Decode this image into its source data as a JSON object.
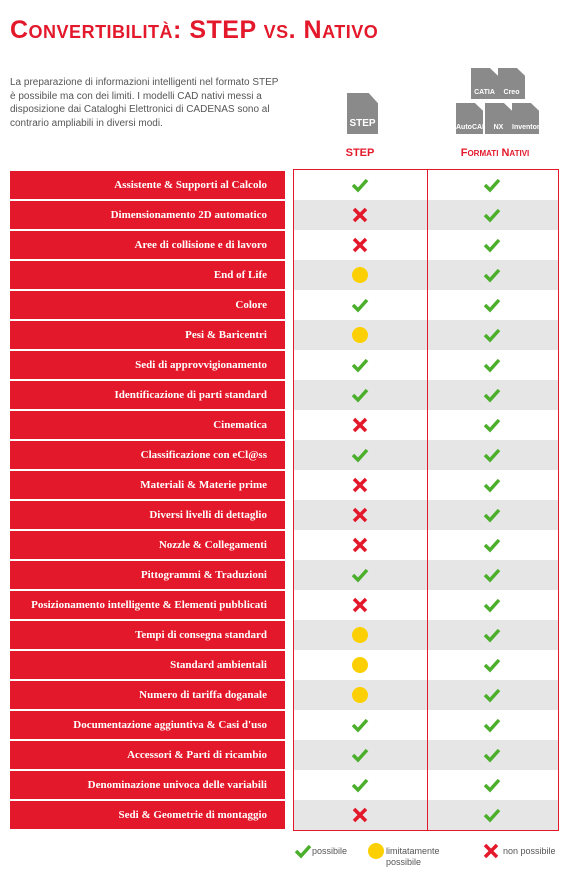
{
  "header": {
    "title": "Convertibilità: STEP vs. Nativo",
    "intro": [
      "La preparazione di informazioni intelligenti nel formato STEP",
      "è possibile ma con dei limiti. I modelli CAD nativi messi a",
      "disposizione dai Cataloghi Elettronici di CADENAS sono al",
      "contrario ampliabili in diversi modi."
    ]
  },
  "columns": {
    "step": {
      "icon": "STEP",
      "label": "STEP"
    },
    "native": {
      "icons": [
        "CATIA",
        "Creo",
        "AutoCAD",
        "NX",
        "Inventor"
      ],
      "label": "Formati Nativi"
    }
  },
  "table": {
    "rows": [
      {
        "label": "Assistente & Supporti al Calcolo",
        "step": "possibile",
        "native": "possibile"
      },
      {
        "label": "Dimensionamento 2D automatico",
        "step": "non possibile",
        "native": "possibile"
      },
      {
        "label": "Aree di collisione e di lavoro",
        "step": "non possibile",
        "native": "possibile"
      },
      {
        "label": "End of Life",
        "step": "limitatamente possibile",
        "native": "possibile"
      },
      {
        "label": "Colore",
        "step": "possibile",
        "native": "possibile"
      },
      {
        "label": "Pesi & Baricentri",
        "step": "limitatamente possibile",
        "native": "possibile"
      },
      {
        "label": "Sedi di approvvigionamento",
        "step": "possibile",
        "native": "possibile"
      },
      {
        "label": "Identificazione di parti standard",
        "step": "possibile",
        "native": "possibile"
      },
      {
        "label": "Cinematica",
        "step": "non possibile",
        "native": "possibile"
      },
      {
        "label": "Classificazione con eCl@ss",
        "step": "possibile",
        "native": "possibile"
      },
      {
        "label": "Materiali & Materie prime",
        "step": "non possibile",
        "native": "possibile"
      },
      {
        "label": "Diversi livelli di dettaglio",
        "step": "non possibile",
        "native": "possibile"
      },
      {
        "label": "Nozzle & Collegamenti",
        "step": "non possibile",
        "native": "possibile"
      },
      {
        "label": "Pittogrammi & Traduzioni",
        "step": "possibile",
        "native": "possibile"
      },
      {
        "label": "Posizionamento intelligente & Elementi pubblicati",
        "step": "non possibile",
        "native": "possibile"
      },
      {
        "label": "Tempi di consegna standard",
        "step": "limitatamente possibile",
        "native": "possibile"
      },
      {
        "label": "Standard ambientali",
        "step": "limitatamente possibile",
        "native": "possibile"
      },
      {
        "label": "Numero di tariffa doganale",
        "step": "limitatamente possibile",
        "native": "possibile"
      },
      {
        "label": "Documentazione aggiuntiva & Casi d'uso",
        "step": "possibile",
        "native": "possibile"
      },
      {
        "label": "Accessori & Parti di ricambio",
        "step": "possibile",
        "native": "possibile"
      },
      {
        "label": "Denominazione univoca delle variabili",
        "step": "possibile",
        "native": "possibile"
      },
      {
        "label": "Sedi & Geometrie di montaggio",
        "step": "non possibile",
        "native": "possibile"
      }
    ]
  },
  "legend": [
    "possibile",
    "limitatamente possibile",
    "non possibile"
  ]
}
